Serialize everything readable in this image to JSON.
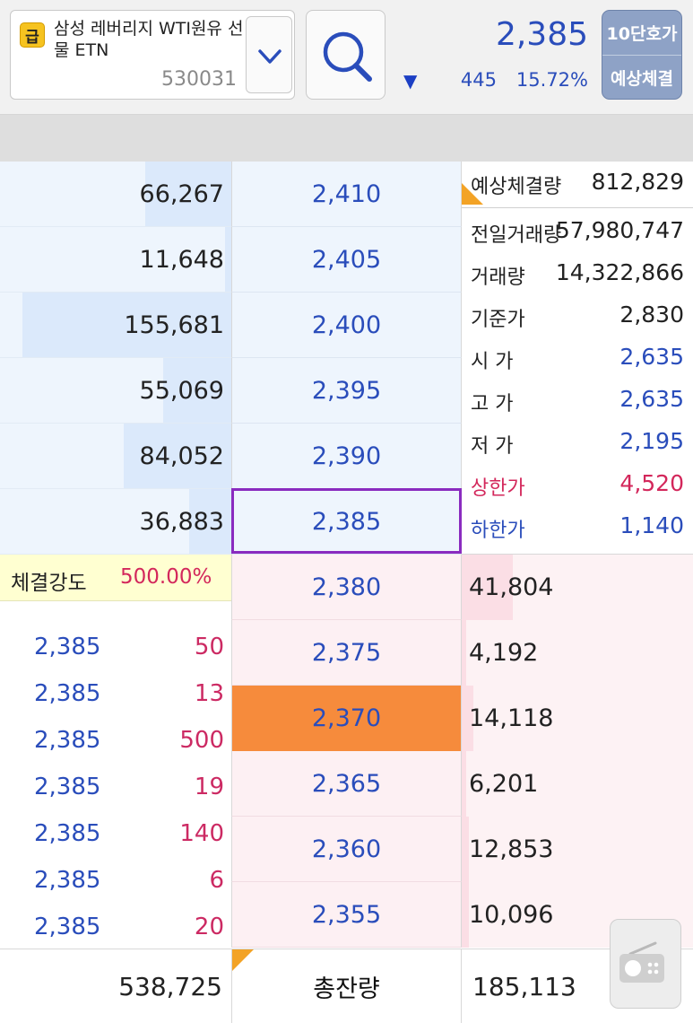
{
  "header": {
    "grade_badge": "급",
    "stock_name": "삼성 레버리지 WTI원유 선물 ETN",
    "stock_code": "530031",
    "price": "2,385",
    "change_arrow": "▼",
    "change_amount": "445",
    "change_rate": "15.72%",
    "toggle_10": "10단호가",
    "toggle_expected": "예상체결"
  },
  "asks": [
    {
      "qty": "66,267",
      "price": "2,410",
      "fill": 0.39
    },
    {
      "qty": "11,648",
      "price": "2,405",
      "fill": 0.03
    },
    {
      "qty": "155,681",
      "price": "2,400",
      "fill": 0.95
    },
    {
      "qty": "55,069",
      "price": "2,395",
      "fill": 0.31
    },
    {
      "qty": "84,052",
      "price": "2,390",
      "fill": 0.49
    },
    {
      "qty": "36,883",
      "price": "2,385",
      "fill": 0.19
    }
  ],
  "bids": [
    {
      "price": "2,380",
      "qty": "41,804",
      "fill": 0.22
    },
    {
      "price": "2,375",
      "qty": "4,192",
      "fill": 0.02
    },
    {
      "price": "2,370",
      "qty": "14,118",
      "fill": 0.05
    },
    {
      "price": "2,365",
      "qty": "6,201",
      "fill": 0.02
    },
    {
      "price": "2,360",
      "qty": "12,853",
      "fill": 0.03
    },
    {
      "price": "2,355",
      "qty": "10,096",
      "fill": 0.03
    }
  ],
  "info": {
    "expected_qty_label": "예상체결량",
    "expected_qty_value": "812,829",
    "rows": [
      {
        "label": "전일거래량",
        "value": "57,980,747",
        "color": "#222222"
      },
      {
        "label": "거래량",
        "value": "14,322,866",
        "color": "#222222"
      },
      {
        "label": "기준가",
        "value": "2,830",
        "color": "#222222"
      },
      {
        "label": "시 가",
        "value": "2,635",
        "color": "#2a4dbb"
      },
      {
        "label": "고 가",
        "value": "2,635",
        "color": "#2a4dbb"
      },
      {
        "label": "저 가",
        "value": "2,195",
        "color": "#2a4dbb"
      },
      {
        "label": "상한가",
        "value": "4,520",
        "color": "#d3275b"
      },
      {
        "label": "하한가",
        "value": "1,140",
        "color": "#2a4dbb"
      }
    ]
  },
  "strength": {
    "label": "체결강도",
    "value": "500.00%"
  },
  "ticks": [
    {
      "price": "2,385",
      "qty": "50"
    },
    {
      "price": "2,385",
      "qty": "13"
    },
    {
      "price": "2,385",
      "qty": "500"
    },
    {
      "price": "2,385",
      "qty": "19"
    },
    {
      "price": "2,385",
      "qty": "140"
    },
    {
      "price": "2,385",
      "qty": "6"
    },
    {
      "price": "2,385",
      "qty": "20"
    }
  ],
  "footer": {
    "total_ask": "538,725",
    "total_label": "총잔량",
    "total_bid": "185,113"
  },
  "icons": {
    "dropdown": "chevron-down-icon",
    "search": "search-icon",
    "radio": "radio-icon"
  },
  "colors": {
    "blue_text": "#2a4dbb",
    "red_text": "#d3275b",
    "highlight_orange": "#f68b3c",
    "current_border": "#8a2bbf"
  }
}
